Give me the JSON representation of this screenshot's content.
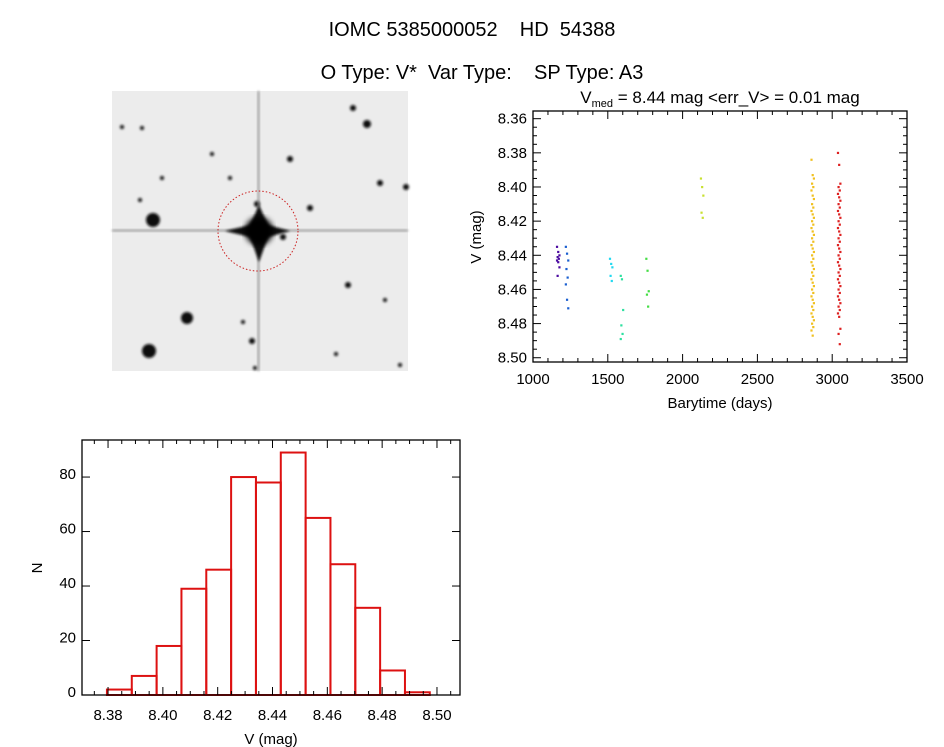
{
  "header": {
    "title": "IOMC 5385000052    HD  54388",
    "subtitle": "O Type: V*  Var Type:    SP Type: A3"
  },
  "finder_image": {
    "description_marker_color": "#cc2222"
  },
  "chart_data": [
    {
      "type": "scatter",
      "title_prefix": "V",
      "title_sub": "med",
      "title_rest": " = 8.44 mag <err_V> = 0.01 mag",
      "xlabel": "Barytime (days)",
      "ylabel": "V (mag)",
      "xlim": [
        1000,
        3500
      ],
      "ylim": [
        8.3555,
        8.5025
      ],
      "y_reversed": true,
      "xticks": [
        "1000",
        "1500",
        "2000",
        "2500",
        "3000",
        "3500"
      ],
      "yticks": [
        "8.36",
        "8.38",
        "8.40",
        "8.42",
        "8.44",
        "8.46",
        "8.48",
        "8.50"
      ],
      "groups": [
        {
          "color": "#4b0aa0",
          "x": 1168,
          "y": [
            8.435,
            8.438,
            8.44,
            8.441,
            8.442,
            8.443,
            8.444,
            8.447,
            8.452
          ]
        },
        {
          "color": "#1a5fd0",
          "x": 1227,
          "y": [
            8.435,
            8.439,
            8.443,
            8.448,
            8.453,
            8.457,
            8.466,
            8.471
          ]
        },
        {
          "color": "#22d8f0",
          "x": 1522,
          "y": [
            8.442,
            8.445,
            8.447,
            8.452,
            8.455
          ]
        },
        {
          "color": "#2ee0a0",
          "x": 1594,
          "y": [
            8.452,
            8.454,
            8.472,
            8.481,
            8.486,
            8.489
          ]
        },
        {
          "color": "#44dd44",
          "x": 1765,
          "y": [
            8.442,
            8.449,
            8.461,
            8.463,
            8.47
          ]
        },
        {
          "color": "#c8e030",
          "x": 2130,
          "y": [
            8.395,
            8.4,
            8.405,
            8.415,
            8.418
          ]
        },
        {
          "color": "#f0c020",
          "x": 2869,
          "y": [
            8.384,
            8.393,
            8.395,
            8.398,
            8.4,
            8.402,
            8.405,
            8.407,
            8.41,
            8.412,
            8.414,
            8.416,
            8.418,
            8.42,
            8.422,
            8.424,
            8.426,
            8.428,
            8.43,
            8.432,
            8.434,
            8.436,
            8.438,
            8.44,
            8.442,
            8.444,
            8.446,
            8.448,
            8.45,
            8.452,
            8.454,
            8.456,
            8.458,
            8.46,
            8.462,
            8.464,
            8.466,
            8.468,
            8.47,
            8.472,
            8.474,
            8.476,
            8.478,
            8.48,
            8.482,
            8.484,
            8.487
          ]
        },
        {
          "color": "#dd2020",
          "x": 3046,
          "y": [
            8.38,
            8.387,
            8.398,
            8.4,
            8.402,
            8.404,
            8.406,
            8.408,
            8.41,
            8.412,
            8.414,
            8.416,
            8.418,
            8.42,
            8.422,
            8.424,
            8.426,
            8.428,
            8.43,
            8.432,
            8.434,
            8.436,
            8.438,
            8.44,
            8.442,
            8.444,
            8.446,
            8.448,
            8.45,
            8.452,
            8.454,
            8.456,
            8.458,
            8.46,
            8.462,
            8.464,
            8.466,
            8.468,
            8.47,
            8.472,
            8.474,
            8.476,
            8.483,
            8.486,
            8.492
          ]
        }
      ]
    },
    {
      "type": "bar",
      "subtype": "histogram",
      "xlabel": "V (mag)",
      "ylabel": "N",
      "xlim": [
        8.3705,
        8.5084
      ],
      "ylim": [
        0,
        93.6
      ],
      "bin_start": 8.3796,
      "bin_width": 0.00906,
      "values": [
        2,
        7,
        18,
        39,
        46,
        80,
        78,
        89,
        65,
        48,
        32,
        9,
        1
      ],
      "bar_color": "#dd1111",
      "xticks": [
        "8.38",
        "8.40",
        "8.42",
        "8.44",
        "8.46",
        "8.48",
        "8.50"
      ],
      "yticks": [
        "0",
        "20",
        "40",
        "60",
        "80"
      ]
    }
  ]
}
